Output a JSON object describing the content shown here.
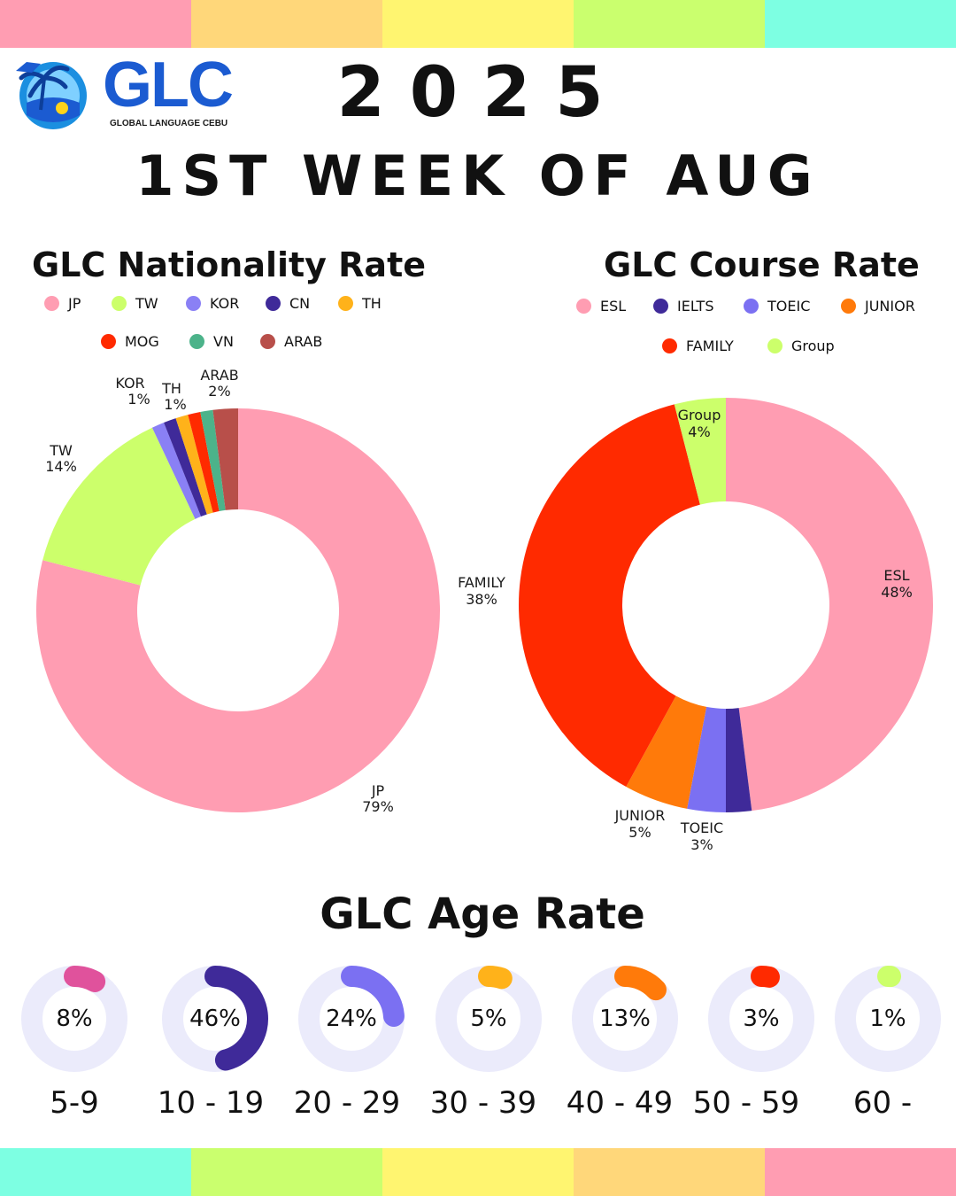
{
  "header": {
    "logo_text": "GLC",
    "logo_tagline": "GLOBAL LANGUAGE CEBU",
    "year": "2025",
    "week": "1ST WEEK OF AUG"
  },
  "bands": {
    "top": [
      "#ff9db2",
      "#ffd77a",
      "#fff570",
      "#caff6e",
      "#7dffe2"
    ],
    "bottom": [
      "#7dffe2",
      "#caff6e",
      "#fff570",
      "#ffd77a",
      "#ff9db2"
    ]
  },
  "chart_data": [
    {
      "type": "pie",
      "title": "GLC Nationality Rate",
      "slices": [
        {
          "label": "JP",
          "value": 79,
          "color": "#ff9db2"
        },
        {
          "label": "TW",
          "value": 14,
          "color": "#ccff6b"
        },
        {
          "label": "KOR",
          "value": 1,
          "color": "#8a80f5"
        },
        {
          "label": "CN",
          "value": 1,
          "color": "#3f2a99"
        },
        {
          "label": "TH",
          "value": 1,
          "color": "#ffb21a"
        },
        {
          "label": "MOG",
          "value": 1,
          "color": "#ff2a00"
        },
        {
          "label": "VN",
          "value": 1,
          "color": "#4cb38a"
        },
        {
          "label": "ARAB",
          "value": 2,
          "color": "#b84f4a"
        }
      ],
      "data_labels": [
        {
          "label": "JP",
          "value": "79%"
        },
        {
          "label": "TW",
          "value": "14%"
        },
        {
          "label": "KOR",
          "value": "1%"
        },
        {
          "label": "TH",
          "value": "1%"
        },
        {
          "label": "ARAB",
          "value": "2%"
        }
      ],
      "legend": "top"
    },
    {
      "type": "pie",
      "title": "GLC Course Rate",
      "slices": [
        {
          "label": "ESL",
          "value": 48,
          "color": "#ff9db2"
        },
        {
          "label": "IELTS",
          "value": 2,
          "color": "#3f2a99"
        },
        {
          "label": "TOEIC",
          "value": 3,
          "color": "#7b70f2"
        },
        {
          "label": "JUNIOR",
          "value": 5,
          "color": "#ff7a0a"
        },
        {
          "label": "FAMILY",
          "value": 38,
          "color": "#ff2a00"
        },
        {
          "label": "Group",
          "value": 4,
          "color": "#ccff6b"
        }
      ],
      "data_labels": [
        {
          "label": "ESL",
          "value": "48%"
        },
        {
          "label": "TOEIC",
          "value": "3%"
        },
        {
          "label": "JUNIOR",
          "value": "5%"
        },
        {
          "label": "FAMILY",
          "value": "38%"
        },
        {
          "label": "Group",
          "value": "4%"
        }
      ],
      "legend": "top"
    },
    {
      "type": "pie",
      "title": "GLC Age Rate",
      "items": [
        {
          "range": "5-9",
          "value": 8,
          "label": "8%",
          "color": "#e0529c"
        },
        {
          "range": "10 - 19",
          "value": 46,
          "label": "46%",
          "color": "#3f2a99"
        },
        {
          "range": "20 - 29",
          "value": 24,
          "label": "24%",
          "color": "#7b70f2"
        },
        {
          "range": "30 - 39",
          "value": 5,
          "label": "5%",
          "color": "#ffb21a"
        },
        {
          "range": "40 - 49",
          "value": 13,
          "label": "13%",
          "color": "#ff7a0a"
        },
        {
          "range": "50 - 59",
          "value": 3,
          "label": "3%",
          "color": "#ff2a00"
        },
        {
          "range": "60 -",
          "value": 1,
          "label": "1%",
          "color": "#ccff6b"
        }
      ],
      "track_color": "#ebebfb"
    }
  ]
}
